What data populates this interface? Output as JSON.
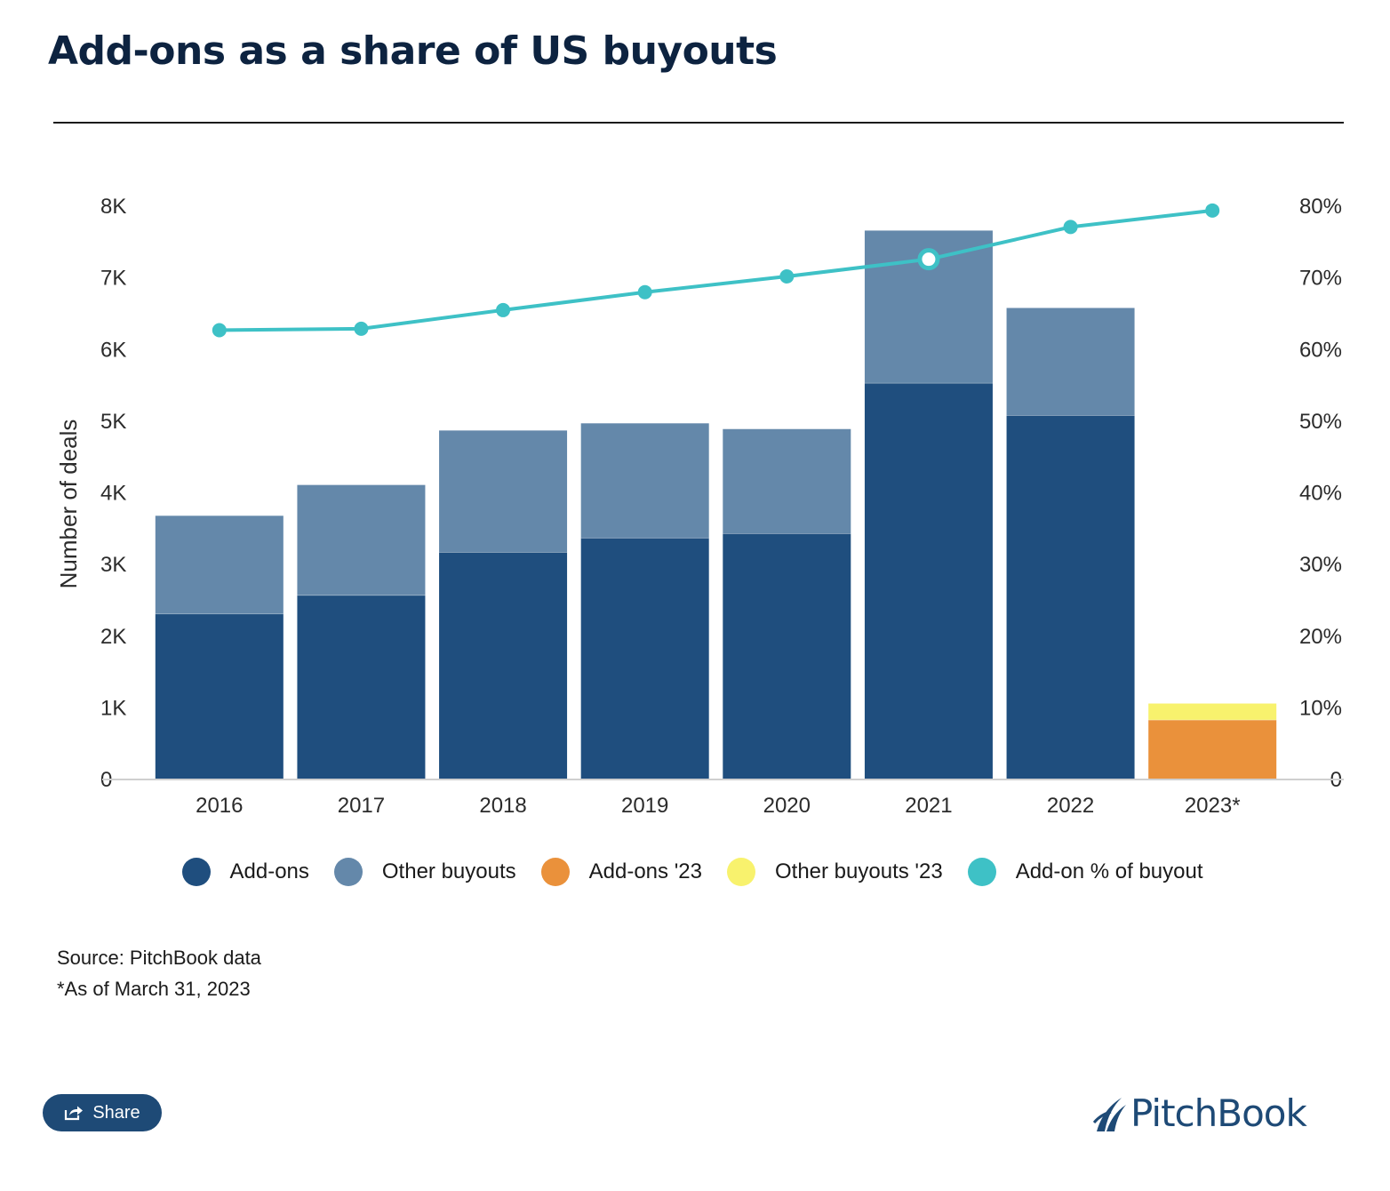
{
  "title": "Add-ons as a share of US buyouts",
  "chart_data": {
    "type": "bar",
    "stacked": true,
    "categories": [
      "2016",
      "2017",
      "2018",
      "2019",
      "2020",
      "2021",
      "2022",
      "2023*"
    ],
    "series": [
      {
        "name": "Add-ons",
        "color": "#1f4e7e",
        "values": [
          2310,
          2570,
          3170,
          3370,
          3430,
          5530,
          5080,
          null
        ]
      },
      {
        "name": "Other buyouts",
        "color": "#6488aa",
        "values": [
          1370,
          1540,
          1700,
          1600,
          1460,
          2130,
          1500,
          null
        ]
      },
      {
        "name": "Add-ons '23",
        "color": "#ea913b",
        "values": [
          null,
          null,
          null,
          null,
          null,
          null,
          null,
          830
        ]
      },
      {
        "name": "Other buyouts '23",
        "color": "#f8f26d",
        "values": [
          null,
          null,
          null,
          null,
          null,
          null,
          null,
          230
        ]
      },
      {
        "name": "Add-on % of buyout",
        "color": "#3ec1c6",
        "type": "line",
        "axis": "right",
        "values": [
          62.7,
          62.9,
          65.5,
          68.0,
          70.2,
          72.6,
          77.1,
          79.4
        ]
      }
    ],
    "highlighted_point": {
      "series": "Add-on % of buyout",
      "category": "2021"
    },
    "yleft": {
      "label": "Number of deals",
      "ticks": [
        "0",
        "1K",
        "2K",
        "3K",
        "4K",
        "5K",
        "6K",
        "7K",
        "8K"
      ],
      "ylim": [
        0,
        8000
      ]
    },
    "yright": {
      "ticks": [
        "0",
        "10%",
        "20%",
        "30%",
        "40%",
        "50%",
        "60%",
        "70%",
        "80%"
      ],
      "ylim": [
        0,
        80
      ]
    },
    "grid": false,
    "legend_position": "bottom"
  },
  "notes": {
    "source": "Source: PitchBook data",
    "footnote": "*As of March 31, 2023"
  },
  "share_button": {
    "label": "Share",
    "icon": "share-icon"
  },
  "brand": {
    "name": "PitchBook",
    "color": "#1e4a76"
  }
}
